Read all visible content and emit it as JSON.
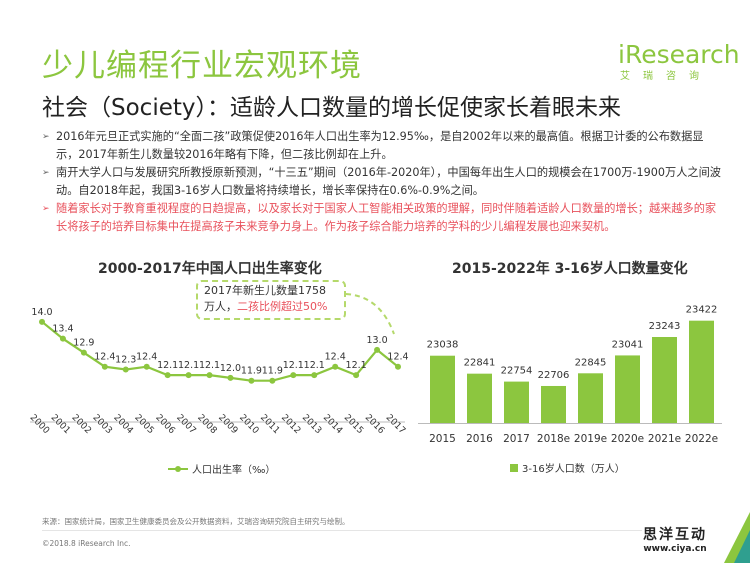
{
  "header": {
    "title": "少儿编程行业宏观环境",
    "subtitle": "社会（Society）：适龄人口数量的增长促使家长着眼未来"
  },
  "logo": {
    "brand": "iResearch",
    "brand_cn": "艾瑞咨询",
    "color": "#8cc63f"
  },
  "bullets": [
    {
      "text": "2016年元旦正式实施的“全面二孩”政策促使2016年人口出生率为12.95‰，是自2002年以来的最高值。根据卫计委的公布数据显示，2017年新生儿数量较2016年略有下降，但二孩比例却在上升。",
      "highlight": false
    },
    {
      "text": "南开大学人口与发展研究所教授原新预测，“十三五”期间（2016年-2020年），中国每年出生人口的规模会在1700万-1900万人之间波动。自2018年起，我国3-16岁人口数量将持续增长，增长率保持在0.6%-0.9%之间。",
      "highlight": true,
      "highlight_color": "#333333"
    },
    {
      "text": "随着家长对于教育重视程度的日趋提高，以及家长对于国家人工智能相关政策的理解，同时伴随着适龄人口数量的增长；越来越多的家长将孩子的培养目标集中在提高孩子未来竞争力身上。作为孩子综合能力培养的学科的少儿编程发展也迎来契机。",
      "highlight": true,
      "highlight_color": "#e8505b"
    }
  ],
  "chart_titles": {
    "left": "2000-2017年中国人口出生率变化",
    "right": "2015-2022年 3-16岁人口数量变化"
  },
  "callout": {
    "line1": "2017年新生儿数量1758",
    "line2_prefix": "万人，",
    "line2_highlight": "二孩比例超过50%"
  },
  "footer": {
    "source": "来源：国家统计局，国家卫生健康委员会及公开数据资料，艾瑞咨询研究院自主研究与绘制。",
    "copyright": "©2018.8  iResearch Inc."
  },
  "watermark": {
    "cn": "思洋互动",
    "url": "www.ciya.cn"
  },
  "chart_data": [
    {
      "type": "line",
      "title": "2000-2017年中国人口出生率变化",
      "categories": [
        "2000",
        "2001",
        "2002",
        "2003",
        "2004",
        "2005",
        "2006",
        "2007",
        "2008",
        "2009",
        "2010",
        "2011",
        "2012",
        "2013",
        "2014",
        "2015",
        "2016",
        "2017"
      ],
      "series": [
        {
          "name": "人口出生率（‰）",
          "values": [
            14.0,
            13.4,
            12.9,
            12.4,
            12.3,
            12.4,
            12.1,
            12.1,
            12.1,
            12.0,
            11.9,
            11.9,
            12.1,
            12.1,
            12.4,
            12.1,
            13.0,
            12.4
          ],
          "color": "#8cc63f"
        }
      ],
      "ylim": [
        10.5,
        14.6
      ],
      "grid": false,
      "legend": "bottom"
    },
    {
      "type": "bar",
      "title": "2015-2022年 3-16岁人口数量变化",
      "categories": [
        "2015",
        "2016",
        "2017",
        "2018e",
        "2019e",
        "2020e",
        "2021e",
        "2022e"
      ],
      "series": [
        {
          "name": "3-16岁人口数（万人）",
          "values": [
            23038,
            22841,
            22754,
            22706,
            22845,
            23041,
            23243,
            23422
          ],
          "color": "#8cc63f"
        }
      ],
      "ylim": [
        22300,
        23550
      ],
      "grid": false,
      "legend": "bottom"
    }
  ]
}
